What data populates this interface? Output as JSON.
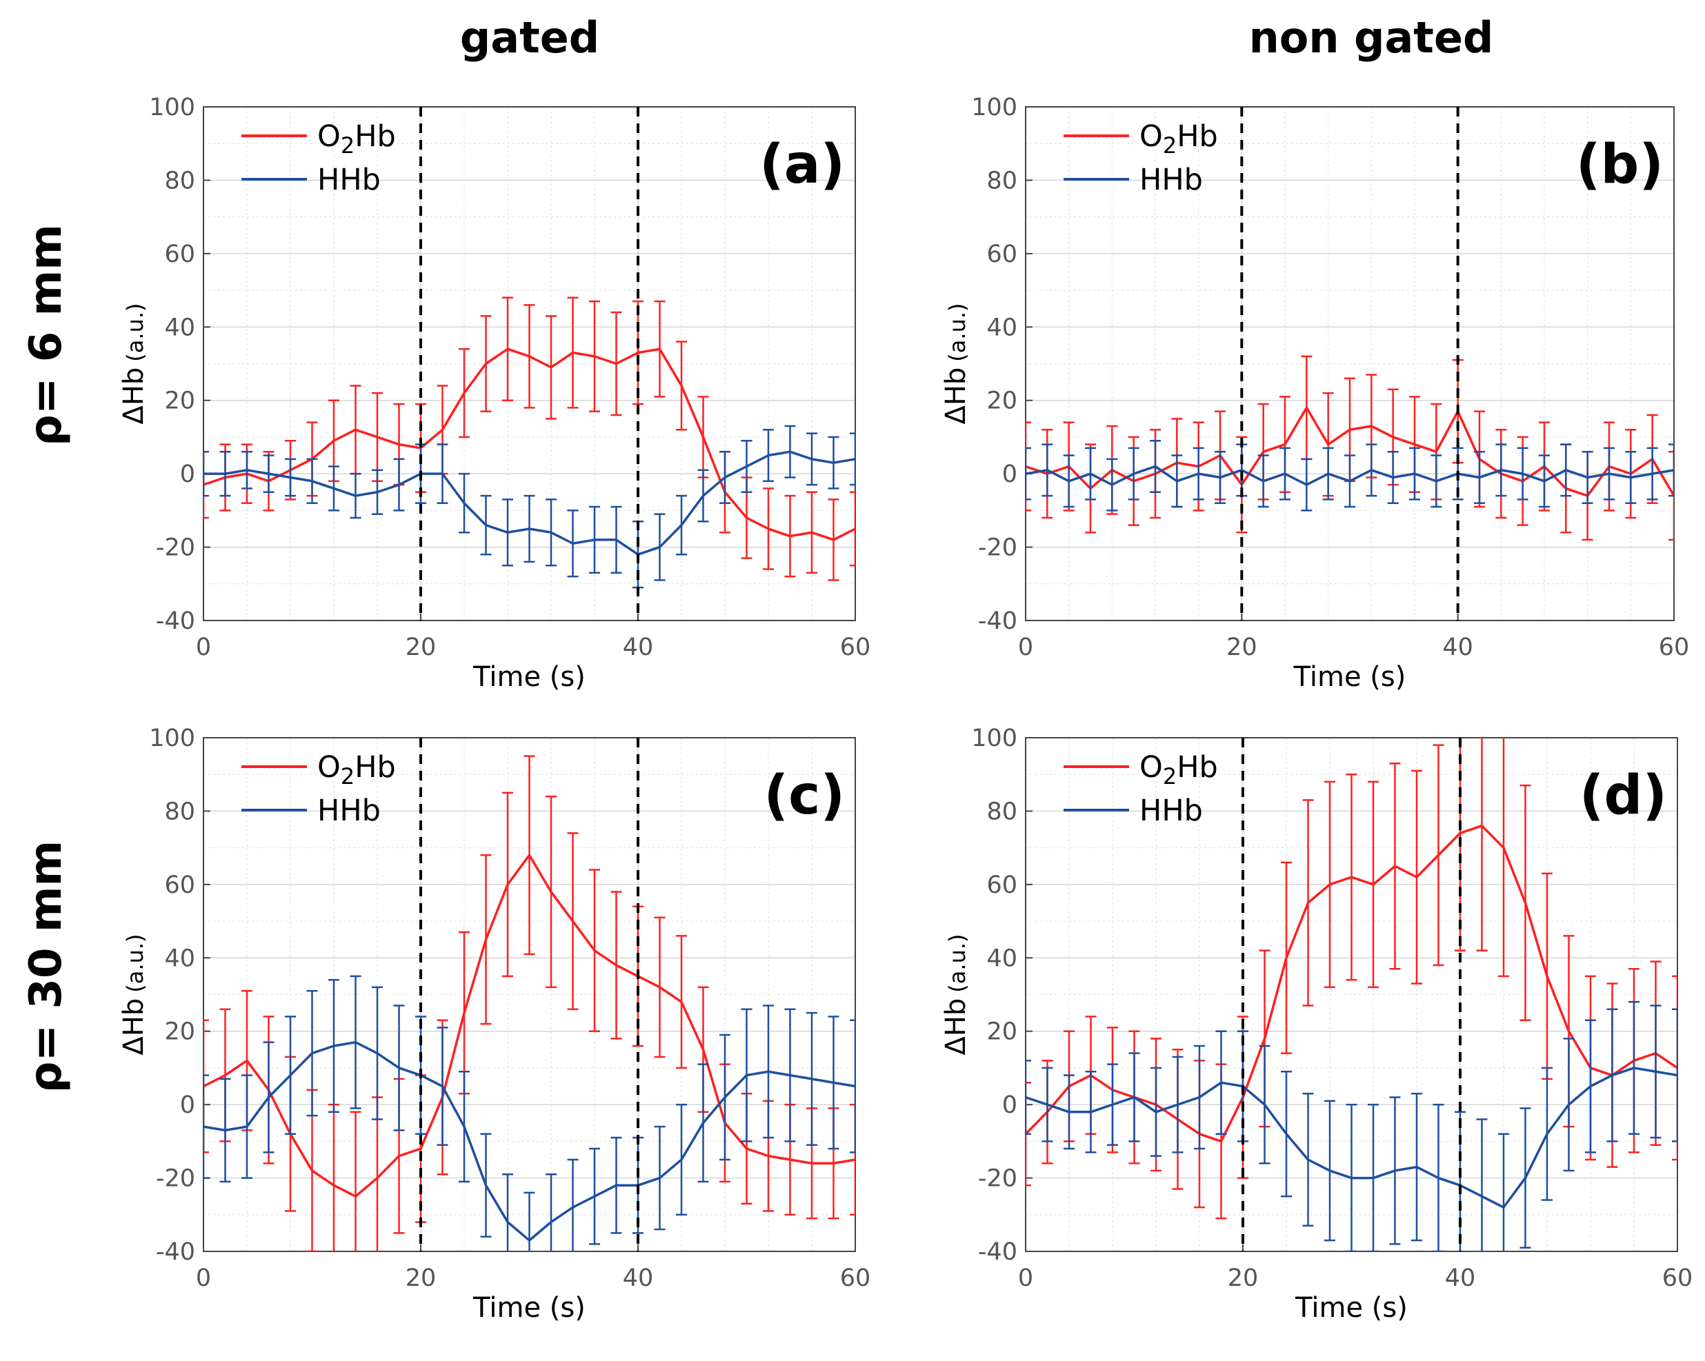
{
  "column_titles": [
    "gated",
    "non gated"
  ],
  "row_titles": [
    "ρ= 6 mm",
    "ρ= 30 mm"
  ],
  "colors": {
    "o2hb": "#ff2020",
    "hhb": "#1f4fa0",
    "grid": "#e3e3e3",
    "axis": "#444444",
    "vline": "#000000"
  },
  "chart_data": [
    {
      "id": "a",
      "panel_label": "(a)",
      "type": "line",
      "xlabel": "Time (s)",
      "ylabel": "ΔHb",
      "ylabel_unit": "(a.u.)",
      "xlim": [
        0,
        60
      ],
      "ylim": [
        -40,
        100
      ],
      "xticks": [
        0,
        20,
        40,
        60
      ],
      "yticks": [
        -40,
        -20,
        0,
        20,
        40,
        60,
        80,
        100
      ],
      "vlines": [
        20,
        40
      ],
      "grid": true,
      "legend": "top-left",
      "series": [
        {
          "name": "O2Hb",
          "legend_main": "O",
          "legend_sub": "2",
          "legend_tail": "Hb",
          "color_key": "o2hb",
          "x": [
            0,
            2,
            4,
            6,
            8,
            10,
            12,
            14,
            16,
            18,
            20,
            22,
            24,
            26,
            28,
            30,
            32,
            34,
            36,
            38,
            40,
            42,
            44,
            46,
            48,
            50,
            52,
            54,
            56,
            58,
            60
          ],
          "y": [
            -3,
            -1,
            0,
            -2,
            1,
            4,
            9,
            12,
            10,
            8,
            7,
            12,
            22,
            30,
            34,
            32,
            29,
            33,
            32,
            30,
            33,
            34,
            24,
            10,
            -5,
            -12,
            -15,
            -17,
            -16,
            -18,
            -15
          ],
          "err": [
            9,
            9,
            8,
            8,
            8,
            10,
            11,
            12,
            12,
            11,
            12,
            12,
            12,
            13,
            14,
            14,
            14,
            15,
            15,
            14,
            14,
            13,
            12,
            11,
            11,
            11,
            11,
            11,
            11,
            11,
            10
          ]
        },
        {
          "name": "HHb",
          "legend_main": "HHb",
          "legend_sub": "",
          "legend_tail": "",
          "color_key": "hhb",
          "x": [
            0,
            2,
            4,
            6,
            8,
            10,
            12,
            14,
            16,
            18,
            20,
            22,
            24,
            26,
            28,
            30,
            32,
            34,
            36,
            38,
            40,
            42,
            44,
            46,
            48,
            50,
            52,
            54,
            56,
            58,
            60
          ],
          "y": [
            0,
            0,
            1,
            0,
            -1,
            -2,
            -4,
            -6,
            -5,
            -3,
            0,
            0,
            -8,
            -14,
            -16,
            -15,
            -16,
            -19,
            -18,
            -18,
            -22,
            -20,
            -14,
            -6,
            -1,
            2,
            5,
            6,
            4,
            3,
            4
          ],
          "err": [
            6,
            6,
            5,
            5,
            5,
            6,
            6,
            6,
            6,
            7,
            8,
            8,
            8,
            8,
            9,
            9,
            9,
            9,
            9,
            9,
            9,
            9,
            8,
            7,
            7,
            7,
            7,
            7,
            7,
            7,
            7
          ]
        }
      ]
    },
    {
      "id": "b",
      "panel_label": "(b)",
      "type": "line",
      "xlabel": "Time (s)",
      "ylabel": "ΔHb",
      "ylabel_unit": "(a.u.)",
      "xlim": [
        0,
        60
      ],
      "ylim": [
        -40,
        100
      ],
      "xticks": [
        0,
        20,
        40,
        60
      ],
      "yticks": [
        -40,
        -20,
        0,
        20,
        40,
        60,
        80,
        100
      ],
      "vlines": [
        20,
        40
      ],
      "grid": true,
      "legend": "top-left",
      "series": [
        {
          "name": "O2Hb",
          "legend_main": "O",
          "legend_sub": "2",
          "legend_tail": "Hb",
          "color_key": "o2hb",
          "x": [
            0,
            2,
            4,
            6,
            8,
            10,
            12,
            14,
            16,
            18,
            20,
            22,
            24,
            26,
            28,
            30,
            32,
            34,
            36,
            38,
            40,
            42,
            44,
            46,
            48,
            50,
            52,
            54,
            56,
            58,
            60
          ],
          "y": [
            2,
            0,
            2,
            -4,
            1,
            -2,
            0,
            3,
            2,
            5,
            -3,
            6,
            8,
            18,
            8,
            12,
            13,
            10,
            8,
            6,
            17,
            4,
            0,
            -2,
            2,
            -4,
            -6,
            2,
            0,
            4,
            -6
          ],
          "err": [
            12,
            12,
            12,
            12,
            12,
            12,
            12,
            12,
            12,
            12,
            13,
            13,
            13,
            14,
            14,
            14,
            14,
            13,
            13,
            13,
            14,
            13,
            12,
            12,
            12,
            12,
            12,
            12,
            12,
            12,
            12
          ]
        },
        {
          "name": "HHb",
          "legend_main": "HHb",
          "legend_sub": "",
          "legend_tail": "",
          "color_key": "hhb",
          "x": [
            0,
            2,
            4,
            6,
            8,
            10,
            12,
            14,
            16,
            18,
            20,
            22,
            24,
            26,
            28,
            30,
            32,
            34,
            36,
            38,
            40,
            42,
            44,
            46,
            48,
            50,
            52,
            54,
            56,
            58,
            60
          ],
          "y": [
            0,
            1,
            -2,
            0,
            -3,
            0,
            2,
            -2,
            0,
            -1,
            1,
            -2,
            0,
            -3,
            0,
            -2,
            1,
            -1,
            0,
            -2,
            0,
            -1,
            1,
            0,
            -2,
            1,
            -1,
            0,
            -1,
            0,
            1
          ],
          "err": [
            7,
            7,
            7,
            7,
            7,
            7,
            7,
            7,
            7,
            7,
            7,
            7,
            7,
            7,
            7,
            7,
            7,
            7,
            7,
            7,
            7,
            7,
            7,
            7,
            7,
            7,
            7,
            7,
            7,
            7,
            7
          ]
        }
      ]
    },
    {
      "id": "c",
      "panel_label": "(c)",
      "type": "line",
      "xlabel": "Time (s)",
      "ylabel": "ΔHb",
      "ylabel_unit": "(a.u.)",
      "xlim": [
        0,
        60
      ],
      "ylim": [
        -40,
        100
      ],
      "xticks": [
        0,
        20,
        40,
        60
      ],
      "yticks": [
        -40,
        -20,
        0,
        20,
        40,
        60,
        80,
        100
      ],
      "vlines": [
        20,
        40
      ],
      "grid": true,
      "legend": "top-left",
      "series": [
        {
          "name": "O2Hb",
          "legend_main": "O",
          "legend_sub": "2",
          "legend_tail": "Hb",
          "color_key": "o2hb",
          "x": [
            0,
            2,
            4,
            6,
            8,
            10,
            12,
            14,
            16,
            18,
            20,
            22,
            24,
            26,
            28,
            30,
            32,
            34,
            36,
            38,
            40,
            42,
            44,
            46,
            48,
            50,
            52,
            54,
            56,
            58,
            60
          ],
          "y": [
            5,
            8,
            12,
            4,
            -8,
            -18,
            -22,
            -25,
            -20,
            -14,
            -12,
            2,
            25,
            45,
            60,
            68,
            58,
            50,
            42,
            38,
            35,
            32,
            28,
            15,
            -5,
            -12,
            -14,
            -15,
            -16,
            -16,
            -15
          ],
          "err": [
            18,
            18,
            19,
            20,
            21,
            22,
            22,
            23,
            22,
            21,
            20,
            21,
            22,
            23,
            25,
            27,
            26,
            24,
            22,
            20,
            19,
            19,
            18,
            17,
            16,
            15,
            15,
            15,
            15,
            15,
            15
          ]
        },
        {
          "name": "HHb",
          "legend_main": "HHb",
          "legend_sub": "",
          "legend_tail": "",
          "color_key": "hhb",
          "x": [
            0,
            2,
            4,
            6,
            8,
            10,
            12,
            14,
            16,
            18,
            20,
            22,
            24,
            26,
            28,
            30,
            32,
            34,
            36,
            38,
            40,
            42,
            44,
            46,
            48,
            50,
            52,
            54,
            56,
            58,
            60
          ],
          "y": [
            -6,
            -7,
            -6,
            2,
            8,
            14,
            16,
            17,
            14,
            10,
            8,
            5,
            -6,
            -22,
            -32,
            -37,
            -32,
            -28,
            -25,
            -22,
            -22,
            -20,
            -15,
            -5,
            2,
            8,
            9,
            8,
            7,
            6,
            5
          ],
          "err": [
            14,
            14,
            14,
            15,
            16,
            17,
            18,
            18,
            18,
            17,
            16,
            16,
            15,
            14,
            13,
            13,
            13,
            13,
            13,
            13,
            13,
            14,
            15,
            16,
            17,
            18,
            18,
            18,
            18,
            18,
            18
          ]
        }
      ]
    },
    {
      "id": "d",
      "panel_label": "(d)",
      "type": "line",
      "xlabel": "Time (s)",
      "ylabel": "ΔHb",
      "ylabel_unit": "(a.u.)",
      "xlim": [
        0,
        60
      ],
      "ylim": [
        -40,
        100
      ],
      "xticks": [
        0,
        20,
        40,
        60
      ],
      "yticks": [
        -40,
        -20,
        0,
        20,
        40,
        60,
        80,
        100
      ],
      "vlines": [
        20,
        40
      ],
      "grid": true,
      "legend": "top-left",
      "series": [
        {
          "name": "O2Hb",
          "legend_main": "O",
          "legend_sub": "2",
          "legend_tail": "Hb",
          "color_key": "o2hb",
          "x": [
            0,
            2,
            4,
            6,
            8,
            10,
            12,
            14,
            16,
            18,
            20,
            22,
            24,
            26,
            28,
            30,
            32,
            34,
            36,
            38,
            40,
            42,
            44,
            46,
            48,
            50,
            52,
            54,
            56,
            58,
            60
          ],
          "y": [
            -8,
            -2,
            5,
            8,
            4,
            2,
            0,
            -4,
            -8,
            -10,
            2,
            18,
            40,
            55,
            60,
            62,
            60,
            65,
            62,
            68,
            74,
            76,
            70,
            55,
            35,
            20,
            10,
            8,
            12,
            14,
            10
          ],
          "err": [
            14,
            14,
            15,
            16,
            17,
            18,
            18,
            19,
            20,
            21,
            22,
            24,
            26,
            28,
            28,
            28,
            28,
            28,
            29,
            30,
            32,
            34,
            35,
            32,
            28,
            26,
            25,
            25,
            25,
            25,
            25
          ]
        },
        {
          "name": "HHb",
          "legend_main": "HHb",
          "legend_sub": "",
          "legend_tail": "",
          "color_key": "hhb",
          "x": [
            0,
            2,
            4,
            6,
            8,
            10,
            12,
            14,
            16,
            18,
            20,
            22,
            24,
            26,
            28,
            30,
            32,
            34,
            36,
            38,
            40,
            42,
            44,
            46,
            48,
            50,
            52,
            54,
            56,
            58,
            60
          ],
          "y": [
            2,
            0,
            -2,
            -2,
            0,
            2,
            -2,
            0,
            2,
            6,
            5,
            0,
            -8,
            -15,
            -18,
            -20,
            -20,
            -18,
            -17,
            -20,
            -22,
            -25,
            -28,
            -20,
            -8,
            0,
            5,
            8,
            10,
            9,
            8
          ],
          "err": [
            10,
            10,
            10,
            11,
            11,
            12,
            12,
            13,
            14,
            14,
            15,
            16,
            17,
            18,
            19,
            20,
            20,
            20,
            20,
            20,
            20,
            21,
            20,
            19,
            18,
            18,
            18,
            18,
            18,
            18,
            18
          ]
        }
      ]
    }
  ]
}
